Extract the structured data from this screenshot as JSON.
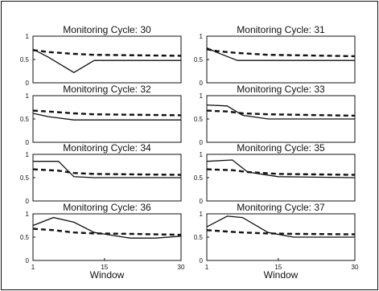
{
  "chart_data": [
    {
      "type": "line",
      "title": "Monitoring Cycle: 30",
      "x": [
        1,
        4,
        9,
        13,
        30
      ],
      "series": [
        {
          "values": [
            0.72,
            0.55,
            0.22,
            0.48,
            0.48
          ]
        },
        {
          "values": [
            0.7,
            0.66,
            0.62,
            0.6,
            0.58
          ]
        }
      ],
      "ylim": [
        0,
        1
      ],
      "xlim": [
        1,
        30
      ],
      "yticks": [
        "0",
        "0.5",
        "1"
      ],
      "xticks": [],
      "xlabel": ""
    },
    {
      "type": "line",
      "title": "Monitoring Cycle: 31",
      "x": [
        1,
        3,
        7,
        13,
        30
      ],
      "series": [
        {
          "values": [
            0.75,
            0.65,
            0.48,
            0.48,
            0.48
          ]
        },
        {
          "values": [
            0.72,
            0.68,
            0.64,
            0.6,
            0.57
          ]
        }
      ],
      "ylim": [
        0,
        1
      ],
      "xlim": [
        1,
        30
      ],
      "yticks": [
        "0",
        "0.5",
        "1"
      ],
      "xticks": [],
      "xlabel": ""
    },
    {
      "type": "line",
      "title": "Monitoring Cycle: 32",
      "x": [
        1,
        4,
        9,
        13,
        30
      ],
      "series": [
        {
          "values": [
            0.62,
            0.55,
            0.48,
            0.48,
            0.48
          ]
        },
        {
          "values": [
            0.68,
            0.66,
            0.62,
            0.6,
            0.58
          ]
        }
      ],
      "ylim": [
        0,
        1
      ],
      "xlim": [
        1,
        30
      ],
      "yticks": [
        "0",
        "0.5",
        "1"
      ],
      "xticks": [],
      "xlabel": ""
    },
    {
      "type": "line",
      "title": "Monitoring Cycle: 33",
      "x": [
        1,
        5,
        8,
        13,
        30
      ],
      "series": [
        {
          "values": [
            0.8,
            0.78,
            0.58,
            0.5,
            0.5
          ]
        },
        {
          "values": [
            0.68,
            0.66,
            0.62,
            0.6,
            0.57
          ]
        }
      ],
      "ylim": [
        0,
        1
      ],
      "xlim": [
        1,
        30
      ],
      "yticks": [
        "0",
        "0.5",
        "1"
      ],
      "xticks": [],
      "xlabel": ""
    },
    {
      "type": "line",
      "title": "Monitoring Cycle: 34",
      "x": [
        1,
        6,
        9,
        13,
        30
      ],
      "series": [
        {
          "values": [
            0.85,
            0.85,
            0.52,
            0.5,
            0.5
          ]
        },
        {
          "values": [
            0.68,
            0.65,
            0.6,
            0.58,
            0.56
          ]
        }
      ],
      "ylim": [
        0,
        1
      ],
      "xlim": [
        1,
        30
      ],
      "yticks": [
        "0",
        "0.5",
        "1"
      ],
      "xticks": [],
      "xlabel": ""
    },
    {
      "type": "line",
      "title": "Monitoring Cycle: 35",
      "x": [
        1,
        6,
        9,
        15,
        30
      ],
      "series": [
        {
          "values": [
            0.85,
            0.88,
            0.62,
            0.52,
            0.5
          ]
        },
        {
          "values": [
            0.68,
            0.66,
            0.62,
            0.58,
            0.56
          ]
        }
      ],
      "ylim": [
        0,
        1
      ],
      "xlim": [
        1,
        30
      ],
      "yticks": [
        "0",
        "0.5",
        "1"
      ],
      "xticks": [],
      "xlabel": ""
    },
    {
      "type": "line",
      "title": "Monitoring Cycle: 36",
      "x": [
        1,
        5,
        9,
        13,
        20,
        25,
        30
      ],
      "series": [
        {
          "values": [
            0.75,
            0.92,
            0.82,
            0.6,
            0.48,
            0.48,
            0.52
          ]
        },
        {
          "values": [
            0.68,
            0.65,
            0.6,
            0.58,
            0.57,
            0.56,
            0.55
          ]
        }
      ],
      "ylim": [
        0,
        1
      ],
      "xlim": [
        1,
        30
      ],
      "yticks": [
        "0",
        "0.5",
        "1"
      ],
      "xticks": [
        "1",
        "15",
        "30"
      ],
      "xlabel": "Window"
    },
    {
      "type": "line",
      "title": "Monitoring Cycle: 37",
      "x": [
        1,
        5,
        8,
        13,
        18,
        30
      ],
      "series": [
        {
          "values": [
            0.72,
            0.95,
            0.92,
            0.6,
            0.5,
            0.5
          ]
        },
        {
          "values": [
            0.65,
            0.62,
            0.6,
            0.58,
            0.57,
            0.56
          ]
        }
      ],
      "ylim": [
        0,
        1
      ],
      "xlim": [
        1,
        30
      ],
      "yticks": [
        "0",
        "0.5",
        "1"
      ],
      "xticks": [
        "1",
        "15",
        "30"
      ],
      "xlabel": "Window"
    }
  ]
}
